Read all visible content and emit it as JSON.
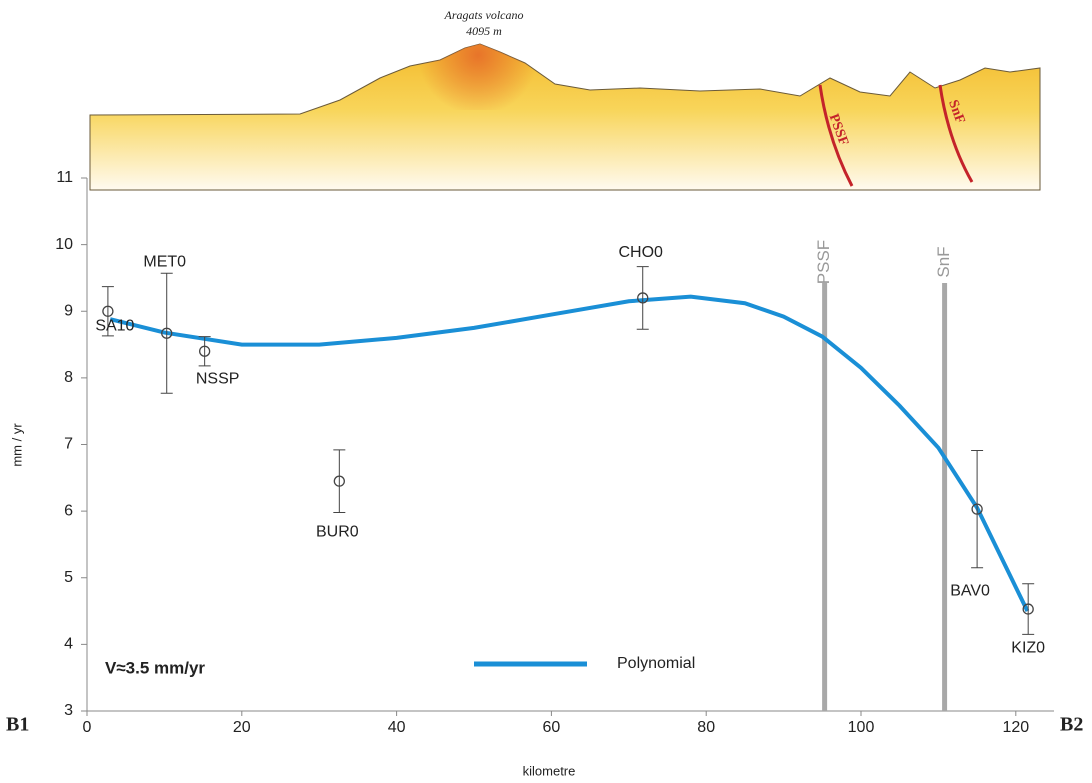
{
  "chart_data": {
    "type": "scatter",
    "xlabel": "kilometre",
    "ylabel": "mm / yr",
    "xlim": [
      0,
      125
    ],
    "ylim": [
      3,
      11
    ],
    "xticks": [
      0,
      20,
      40,
      60,
      80,
      100,
      120
    ],
    "yticks": [
      3,
      4,
      5,
      6,
      7,
      8,
      9,
      10,
      11
    ],
    "grid": false,
    "points": {
      "color": "#444444",
      "labels": [
        "SA10",
        "MET0",
        "NSSP",
        "BUR0",
        "CHO0",
        "BAV0",
        "KIZ0"
      ],
      "x": [
        2.7,
        10.3,
        15.2,
        32.6,
        71.8,
        115,
        121.6
      ],
      "values": [
        9.0,
        8.67,
        8.4,
        6.45,
        9.2,
        6.03,
        4.53
      ],
      "errors": [
        0.37,
        0.9,
        0.22,
        0.47,
        0.47,
        0.88,
        0.38
      ]
    },
    "fit": {
      "name": "Polynomial",
      "color": "#1a8fd6",
      "x": [
        3,
        10,
        20,
        30,
        40,
        50,
        60,
        70,
        78,
        85,
        90,
        95,
        100,
        105,
        110,
        115,
        121.5
      ],
      "values": [
        8.88,
        8.68,
        8.5,
        8.5,
        8.6,
        8.75,
        8.95,
        9.15,
        9.22,
        9.12,
        8.92,
        8.62,
        8.15,
        7.58,
        6.95,
        6.05,
        4.5
      ]
    },
    "faults": [
      {
        "label": "PSSF",
        "x": 95.3
      },
      {
        "label": "SnF",
        "x": 110.8
      }
    ],
    "annotation": "V≈3.5 mm/yr",
    "profile_start": "B1",
    "profile_end": "B2",
    "volcano_name": "Aragats volcano",
    "volcano_height": "4095 m"
  }
}
